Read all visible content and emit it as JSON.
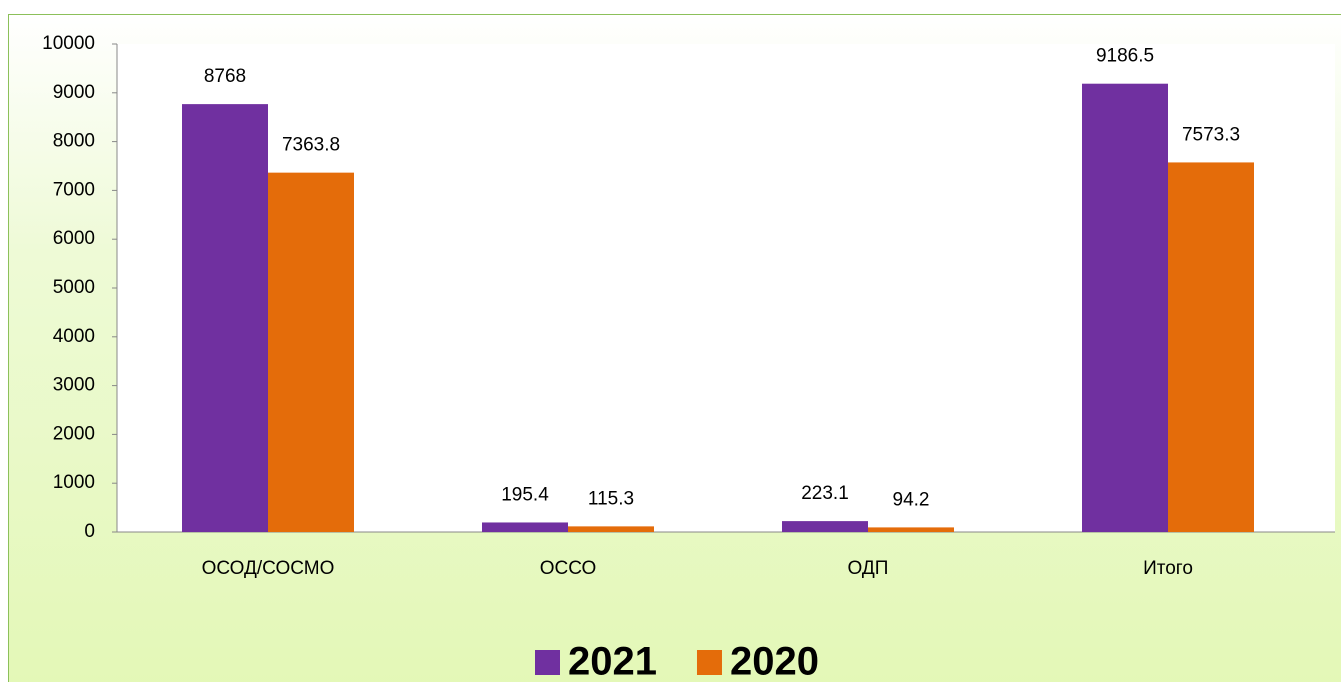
{
  "chart_data": {
    "type": "bar",
    "categories": [
      "ОСОД/СОСМО",
      "ОССО",
      "ОДП",
      "Итого"
    ],
    "series": [
      {
        "name": "2021",
        "color": "#7030a0",
        "values": [
          8768,
          195.4,
          223.1,
          9186.5
        ]
      },
      {
        "name": "2020",
        "color": "#e46c0a",
        "values": [
          7363.8,
          115.3,
          94.2,
          7573.3
        ]
      }
    ],
    "ylim": [
      0,
      10000
    ],
    "yticks": [
      0,
      1000,
      2000,
      3000,
      4000,
      5000,
      6000,
      7000,
      8000,
      9000,
      10000
    ],
    "legend": "bottom"
  }
}
